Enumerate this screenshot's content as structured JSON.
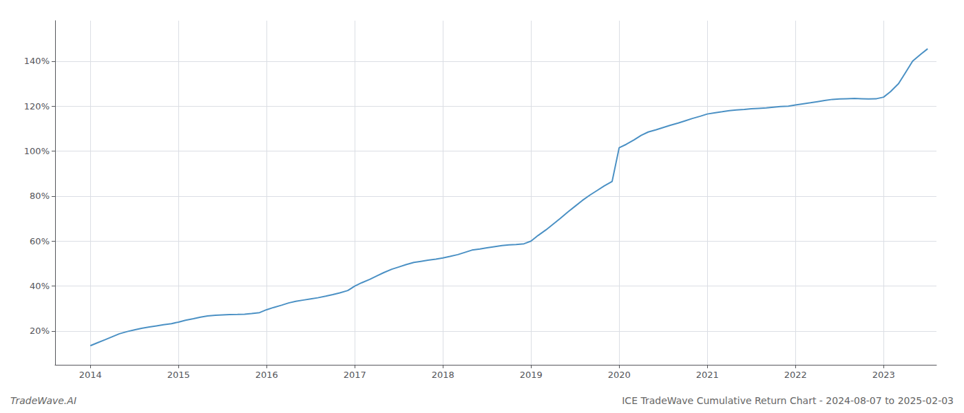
{
  "chart_data": {
    "type": "line",
    "title": "ICE TradeWave Cumulative Return Chart - 2024-08-07 to 2025-02-03",
    "annotations": [
      "TradeWave.AI"
    ],
    "color": "#4a90c4",
    "grid": true,
    "xlim": [
      2013.6,
      2023.6
    ],
    "ylim": [
      5,
      158
    ],
    "xticks": [
      2014,
      2015,
      2016,
      2017,
      2018,
      2019,
      2020,
      2021,
      2022,
      2023
    ],
    "yticks": [
      {
        "value": 20,
        "label": "20%"
      },
      {
        "value": 40,
        "label": "40%"
      },
      {
        "value": 60,
        "label": "60%"
      },
      {
        "value": 80,
        "label": "80%"
      },
      {
        "value": 100,
        "label": "100%"
      },
      {
        "value": 120,
        "label": "120%"
      },
      {
        "value": 140,
        "label": "140%"
      }
    ],
    "x": [
      2014.0,
      2014.08,
      2014.17,
      2014.25,
      2014.33,
      2014.42,
      2014.5,
      2014.58,
      2014.67,
      2014.75,
      2014.83,
      2014.92,
      2015.0,
      2015.08,
      2015.17,
      2015.25,
      2015.33,
      2015.42,
      2015.5,
      2015.58,
      2015.67,
      2015.75,
      2015.83,
      2015.92,
      2016.0,
      2016.08,
      2016.17,
      2016.25,
      2016.33,
      2016.42,
      2016.5,
      2016.58,
      2016.67,
      2016.75,
      2016.83,
      2016.92,
      2017.0,
      2017.08,
      2017.17,
      2017.25,
      2017.33,
      2017.42,
      2017.5,
      2017.58,
      2017.67,
      2017.75,
      2017.83,
      2017.92,
      2018.0,
      2018.08,
      2018.17,
      2018.25,
      2018.33,
      2018.42,
      2018.5,
      2018.58,
      2018.67,
      2018.75,
      2018.83,
      2018.92,
      2019.0,
      2019.08,
      2019.17,
      2019.25,
      2019.33,
      2019.42,
      2019.5,
      2019.58,
      2019.67,
      2019.75,
      2019.83,
      2019.92,
      2020.0,
      2020.08,
      2020.17,
      2020.25,
      2020.33,
      2020.42,
      2020.5,
      2020.58,
      2020.67,
      2020.75,
      2020.83,
      2020.92,
      2021.0,
      2021.08,
      2021.17,
      2021.25,
      2021.33,
      2021.42,
      2021.5,
      2021.58,
      2021.67,
      2021.75,
      2021.83,
      2021.92,
      2022.0,
      2022.08,
      2022.17,
      2022.25,
      2022.33,
      2022.42,
      2022.5,
      2022.58,
      2022.67,
      2022.75,
      2022.83,
      2022.92,
      2023.0,
      2023.08,
      2023.17,
      2023.25,
      2023.33,
      2023.42,
      2023.5
    ],
    "values": [
      13.5,
      14.8,
      16.2,
      17.5,
      18.8,
      19.8,
      20.5,
      21.2,
      21.8,
      22.3,
      22.8,
      23.3,
      24.0,
      24.8,
      25.5,
      26.2,
      26.7,
      27.0,
      27.2,
      27.3,
      27.4,
      27.5,
      27.8,
      28.2,
      29.5,
      30.5,
      31.5,
      32.5,
      33.2,
      33.8,
      34.3,
      34.8,
      35.5,
      36.2,
      37.0,
      38.0,
      40.0,
      41.5,
      43.0,
      44.5,
      46.0,
      47.5,
      48.5,
      49.5,
      50.5,
      51.0,
      51.5,
      52.0,
      52.5,
      53.2,
      54.0,
      55.0,
      56.0,
      56.5,
      57.0,
      57.5,
      58.0,
      58.3,
      58.5,
      58.8,
      60.0,
      62.5,
      65.0,
      67.5,
      70.0,
      73.0,
      75.5,
      78.0,
      80.5,
      82.5,
      84.5,
      86.5,
      101.5,
      103.0,
      105.0,
      107.0,
      108.5,
      109.5,
      110.5,
      111.5,
      112.5,
      113.5,
      114.5,
      115.5,
      116.5,
      117.0,
      117.5,
      118.0,
      118.3,
      118.5,
      118.8,
      119.0,
      119.2,
      119.5,
      119.8,
      120.0,
      120.5,
      121.0,
      121.5,
      122.0,
      122.5,
      123.0,
      123.2,
      123.3,
      123.4,
      123.3,
      123.2,
      123.3,
      124.0,
      126.5,
      130.0,
      135.0,
      140.0,
      143.0,
      145.5
    ]
  }
}
